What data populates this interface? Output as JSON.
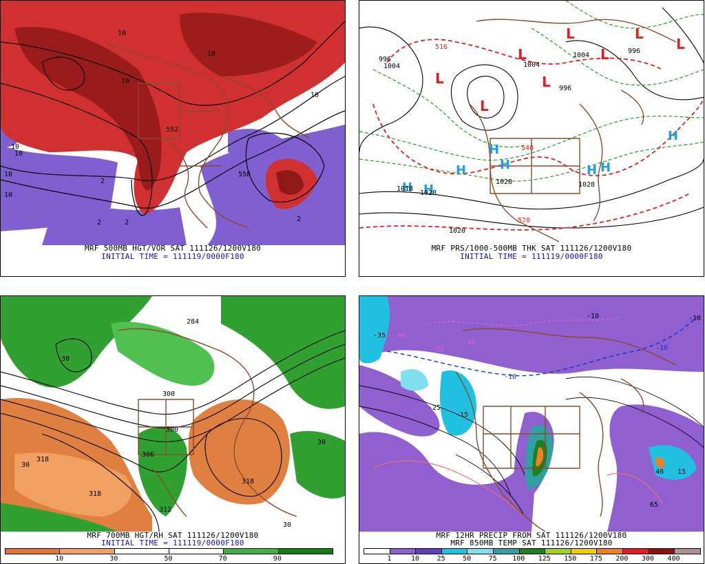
{
  "panels": {
    "tl": {
      "caption": "MRF 500MB HGT/VOR SAT 111126/1200V180",
      "init": "INITIAL TIME = 111119/0000F180",
      "labels": [
        "10",
        "10",
        "10",
        "10",
        "2",
        "2",
        "10",
        "18",
        "552",
        "2",
        "10",
        "558",
        "2",
        "10"
      ]
    },
    "tr": {
      "caption": "MRF PRS/1000-500MB THK SAT 111126/1200V180",
      "init": "INITIAL TIME = 111119/0000F180",
      "labels": [
        "516",
        "996",
        "1004",
        "1004",
        "1004",
        "996",
        "996",
        "540",
        "1028",
        "1028",
        "1018",
        "1028",
        "1020",
        "570"
      ]
    },
    "bl": {
      "caption": "MRF 700MB HGT/RH SAT 111126/1200V180",
      "init": "INITIAL TIME = 111119/0000F180",
      "labels": [
        "284",
        "300",
        "300",
        "306",
        "318",
        "318",
        "312",
        "318",
        "30",
        "30",
        "30",
        "30"
      ],
      "colorbar": {
        "colors": [
          "#e07830",
          "#f0a060",
          "#ffffff",
          "#ffffff",
          "#40b040",
          "#108010"
        ],
        "labels": [
          "10",
          "30",
          "50",
          "70",
          "90"
        ]
      }
    },
    "br": {
      "caption": "MRF 12HR PRECIP FROM SAT 111126/1200V180",
      "caption2": "MRF 850MB TEMP SAT 111126/1200V180",
      "labels": [
        "-35",
        "-40",
        "-25",
        "-15",
        "-10",
        "-10",
        "-10",
        "-10",
        "40",
        "65",
        "15",
        "-30",
        "-35"
      ],
      "colorbar": {
        "colors": [
          "#ffffff",
          "#9060d0",
          "#6040c0",
          "#20c0e0",
          "#80e0f0",
          "#30a0a0",
          "#208020",
          "#a0d020",
          "#f0d000",
          "#f08020",
          "#e02020",
          "#901010",
          "#b09090"
        ],
        "labels": [
          "1",
          "10",
          "25",
          "50",
          "75",
          "100",
          "125",
          "150",
          "175",
          "200",
          "300",
          "400"
        ]
      }
    }
  },
  "colors": {
    "vort_red": "#d03030",
    "vort_dark": "#901818",
    "vort_purple": "#8060d0",
    "land": "#8a4a2a",
    "low_red": "#e02020",
    "high_blue": "#20a0e0",
    "thk_green": "#20a020",
    "rh_green": "#30a030",
    "rh_orange": "#e08040"
  }
}
